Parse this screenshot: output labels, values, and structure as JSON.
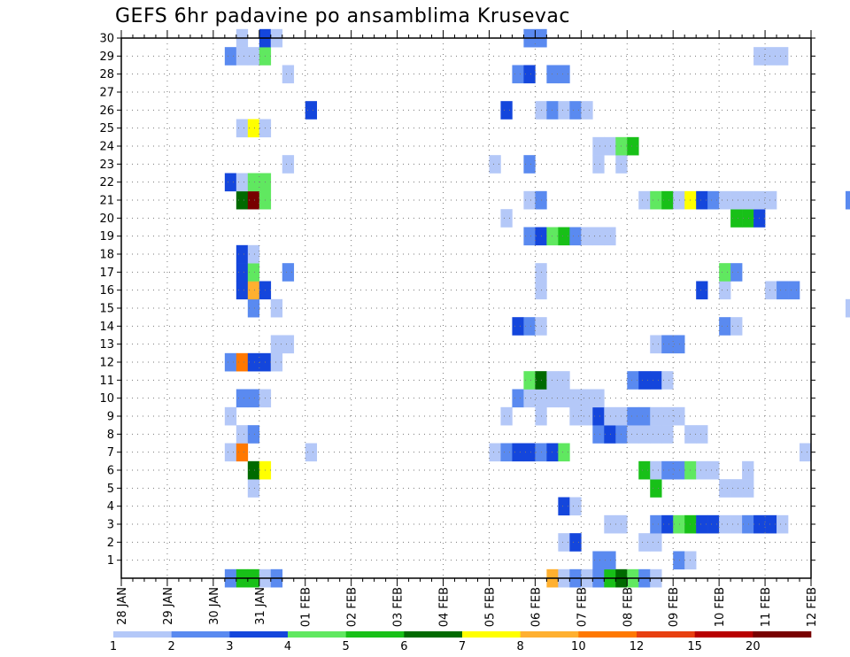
{
  "chart_data": {
    "type": "heatmap",
    "title": "GEFS 6hr padavine po ansamblima Krusevac",
    "x_tick_labels": [
      "28 JAN",
      "29 JAN",
      "30 JAN",
      "31 JAN",
      "01 FEB",
      "02 FEB",
      "03 FEB",
      "04 FEB",
      "05 FEB",
      "06 FEB",
      "07 FEB",
      "08 FEB",
      "09 FEB",
      "10 FEB",
      "11 FEB",
      "12 FEB"
    ],
    "steps_per_day": 4,
    "y_range": [
      0,
      30
    ],
    "y_ticks": [
      1,
      2,
      3,
      4,
      5,
      6,
      7,
      8,
      9,
      10,
      11,
      12,
      13,
      14,
      15,
      16,
      17,
      18,
      19,
      20,
      21,
      22,
      23,
      24,
      25,
      26,
      27,
      28,
      29,
      30
    ],
    "colorbar": {
      "labels": [
        "1",
        "2",
        "3",
        "4",
        "5",
        "6",
        "7",
        "8",
        "10",
        "12",
        "15",
        "20"
      ],
      "colors": [
        "#b4c8f8",
        "#5a8af0",
        "#1446dc",
        "#60e860",
        "#18c018",
        "#006a00",
        "#ffff00",
        "#ffb030",
        "#ff7800",
        "#e84010",
        "#b80000",
        "#780000"
      ]
    },
    "cells": [
      [
        9,
        0,
        2
      ],
      [
        10,
        0,
        5
      ],
      [
        11,
        0,
        5
      ],
      [
        12,
        0,
        1
      ],
      [
        13,
        0,
        2
      ],
      [
        37,
        0,
        8
      ],
      [
        38,
        0,
        1
      ],
      [
        39,
        0,
        2
      ],
      [
        40,
        0,
        1
      ],
      [
        41,
        0,
        2
      ],
      [
        42,
        0,
        5
      ],
      [
        43,
        0,
        6
      ],
      [
        44,
        0,
        4
      ],
      [
        45,
        0,
        2
      ],
      [
        46,
        0,
        1
      ],
      [
        41,
        1,
        2
      ],
      [
        42,
        1,
        2
      ],
      [
        48,
        1,
        2
      ],
      [
        49,
        1,
        1
      ],
      [
        38,
        2,
        1
      ],
      [
        39,
        2,
        3
      ],
      [
        45,
        2,
        1
      ],
      [
        46,
        2,
        1
      ],
      [
        42,
        3,
        1
      ],
      [
        43,
        3,
        1
      ],
      [
        46,
        3,
        2
      ],
      [
        47,
        3,
        3
      ],
      [
        48,
        3,
        4
      ],
      [
        49,
        3,
        5
      ],
      [
        50,
        3,
        3
      ],
      [
        51,
        3,
        3
      ],
      [
        52,
        3,
        1
      ],
      [
        53,
        3,
        1
      ],
      [
        54,
        3,
        2
      ],
      [
        55,
        3,
        3
      ],
      [
        56,
        3,
        3
      ],
      [
        57,
        3,
        1
      ],
      [
        38,
        4,
        3
      ],
      [
        39,
        4,
        1
      ],
      [
        11,
        5,
        1
      ],
      [
        46,
        5,
        5
      ],
      [
        52,
        5,
        1
      ],
      [
        53,
        5,
        1
      ],
      [
        54,
        5,
        1
      ],
      [
        11,
        6,
        6
      ],
      [
        12,
        6,
        7
      ],
      [
        45,
        6,
        5
      ],
      [
        46,
        6,
        1
      ],
      [
        47,
        6,
        2
      ],
      [
        48,
        6,
        2
      ],
      [
        49,
        6,
        4
      ],
      [
        50,
        6,
        1
      ],
      [
        51,
        6,
        1
      ],
      [
        54,
        6,
        1
      ],
      [
        9,
        7,
        1
      ],
      [
        10,
        7,
        9
      ],
      [
        16,
        7,
        1
      ],
      [
        32,
        7,
        1
      ],
      [
        33,
        7,
        2
      ],
      [
        34,
        7,
        3
      ],
      [
        35,
        7,
        3
      ],
      [
        36,
        7,
        2
      ],
      [
        37,
        7,
        3
      ],
      [
        38,
        7,
        4
      ],
      [
        59,
        7,
        1
      ],
      [
        10,
        8,
        1
      ],
      [
        11,
        8,
        2
      ],
      [
        41,
        8,
        2
      ],
      [
        42,
        8,
        3
      ],
      [
        43,
        8,
        2
      ],
      [
        44,
        8,
        1
      ],
      [
        45,
        8,
        1
      ],
      [
        46,
        8,
        1
      ],
      [
        47,
        8,
        1
      ],
      [
        49,
        8,
        1
      ],
      [
        50,
        8,
        1
      ],
      [
        9,
        9,
        1
      ],
      [
        33,
        9,
        1
      ],
      [
        36,
        9,
        1
      ],
      [
        39,
        9,
        1
      ],
      [
        40,
        9,
        1
      ],
      [
        41,
        9,
        3
      ],
      [
        42,
        9,
        1
      ],
      [
        43,
        9,
        1
      ],
      [
        44,
        9,
        2
      ],
      [
        45,
        9,
        2
      ],
      [
        46,
        9,
        1
      ],
      [
        47,
        9,
        1
      ],
      [
        48,
        9,
        1
      ],
      [
        69,
        9,
        1
      ],
      [
        10,
        10,
        2
      ],
      [
        11,
        10,
        2
      ],
      [
        12,
        10,
        1
      ],
      [
        34,
        10,
        2
      ],
      [
        35,
        10,
        1
      ],
      [
        36,
        10,
        1
      ],
      [
        37,
        10,
        1
      ],
      [
        38,
        10,
        1
      ],
      [
        39,
        10,
        1
      ],
      [
        40,
        10,
        1
      ],
      [
        41,
        10,
        1
      ],
      [
        35,
        11,
        4
      ],
      [
        36,
        11,
        6
      ],
      [
        37,
        11,
        1
      ],
      [
        38,
        11,
        1
      ],
      [
        44,
        11,
        2
      ],
      [
        45,
        11,
        3
      ],
      [
        46,
        11,
        3
      ],
      [
        47,
        11,
        1
      ],
      [
        9,
        12,
        2
      ],
      [
        10,
        12,
        9
      ],
      [
        11,
        12,
        3
      ],
      [
        12,
        12,
        3
      ],
      [
        13,
        12,
        1
      ],
      [
        13,
        13,
        1
      ],
      [
        14,
        13,
        1
      ],
      [
        46,
        13,
        1
      ],
      [
        47,
        13,
        2
      ],
      [
        48,
        13,
        2
      ],
      [
        34,
        14,
        3
      ],
      [
        35,
        14,
        2
      ],
      [
        36,
        14,
        1
      ],
      [
        52,
        14,
        2
      ],
      [
        53,
        14,
        1
      ],
      [
        11,
        15,
        2
      ],
      [
        13,
        15,
        1
      ],
      [
        63,
        15,
        1
      ],
      [
        70,
        15,
        1
      ],
      [
        10,
        16,
        3
      ],
      [
        11,
        16,
        8
      ],
      [
        12,
        16,
        3
      ],
      [
        36,
        16,
        1
      ],
      [
        50,
        16,
        3
      ],
      [
        52,
        16,
        1
      ],
      [
        56,
        16,
        1
      ],
      [
        57,
        16,
        2
      ],
      [
        58,
        16,
        2
      ],
      [
        10,
        17,
        3
      ],
      [
        11,
        17,
        4
      ],
      [
        14,
        17,
        2
      ],
      [
        36,
        17,
        1
      ],
      [
        52,
        17,
        4
      ],
      [
        53,
        17,
        2
      ],
      [
        10,
        18,
        3
      ],
      [
        11,
        18,
        1
      ],
      [
        35,
        19,
        2
      ],
      [
        36,
        19,
        3
      ],
      [
        37,
        19,
        4
      ],
      [
        38,
        19,
        5
      ],
      [
        39,
        19,
        2
      ],
      [
        40,
        19,
        1
      ],
      [
        41,
        19,
        1
      ],
      [
        42,
        19,
        1
      ],
      [
        33,
        20,
        1
      ],
      [
        53,
        20,
        5
      ],
      [
        54,
        20,
        5
      ],
      [
        55,
        20,
        3
      ],
      [
        10,
        21,
        6
      ],
      [
        11,
        21,
        12
      ],
      [
        12,
        21,
        4
      ],
      [
        35,
        21,
        1
      ],
      [
        36,
        21,
        2
      ],
      [
        45,
        21,
        1
      ],
      [
        46,
        21,
        4
      ],
      [
        47,
        21,
        5
      ],
      [
        48,
        21,
        1
      ],
      [
        49,
        21,
        7
      ],
      [
        50,
        21,
        3
      ],
      [
        51,
        21,
        2
      ],
      [
        52,
        21,
        1
      ],
      [
        53,
        21,
        1
      ],
      [
        54,
        21,
        1
      ],
      [
        55,
        21,
        1
      ],
      [
        56,
        21,
        1
      ],
      [
        63,
        21,
        2
      ],
      [
        64,
        21,
        2
      ],
      [
        65,
        21,
        3
      ],
      [
        66,
        21,
        2
      ],
      [
        9,
        22,
        3
      ],
      [
        10,
        22,
        1
      ],
      [
        11,
        22,
        4
      ],
      [
        12,
        22,
        4
      ],
      [
        14,
        23,
        1
      ],
      [
        32,
        23,
        1
      ],
      [
        35,
        23,
        2
      ],
      [
        41,
        23,
        1
      ],
      [
        43,
        23,
        1
      ],
      [
        41,
        24,
        1
      ],
      [
        42,
        24,
        1
      ],
      [
        43,
        24,
        4
      ],
      [
        44,
        24,
        5
      ],
      [
        75,
        24,
        1
      ],
      [
        10,
        25,
        1
      ],
      [
        11,
        25,
        7
      ],
      [
        12,
        25,
        1
      ],
      [
        74,
        25,
        1
      ],
      [
        16,
        26,
        3
      ],
      [
        33,
        26,
        3
      ],
      [
        36,
        26,
        1
      ],
      [
        37,
        26,
        2
      ],
      [
        38,
        26,
        1
      ],
      [
        39,
        26,
        2
      ],
      [
        40,
        26,
        1
      ],
      [
        14,
        28,
        1
      ],
      [
        34,
        28,
        2
      ],
      [
        35,
        28,
        3
      ],
      [
        37,
        28,
        2
      ],
      [
        38,
        28,
        2
      ],
      [
        66,
        28,
        2
      ],
      [
        72,
        28,
        2
      ],
      [
        73,
        28,
        1
      ],
      [
        9,
        29,
        2
      ],
      [
        10,
        29,
        1
      ],
      [
        11,
        29,
        1
      ],
      [
        12,
        29,
        4
      ],
      [
        55,
        29,
        1
      ],
      [
        56,
        29,
        1
      ],
      [
        57,
        29,
        1
      ],
      [
        75,
        29,
        1
      ],
      [
        10,
        30,
        1
      ],
      [
        12,
        30,
        3
      ],
      [
        13,
        30,
        1
      ],
      [
        35,
        30,
        2
      ],
      [
        36,
        30,
        2
      ],
      [
        75,
        30,
        2
      ]
    ]
  }
}
